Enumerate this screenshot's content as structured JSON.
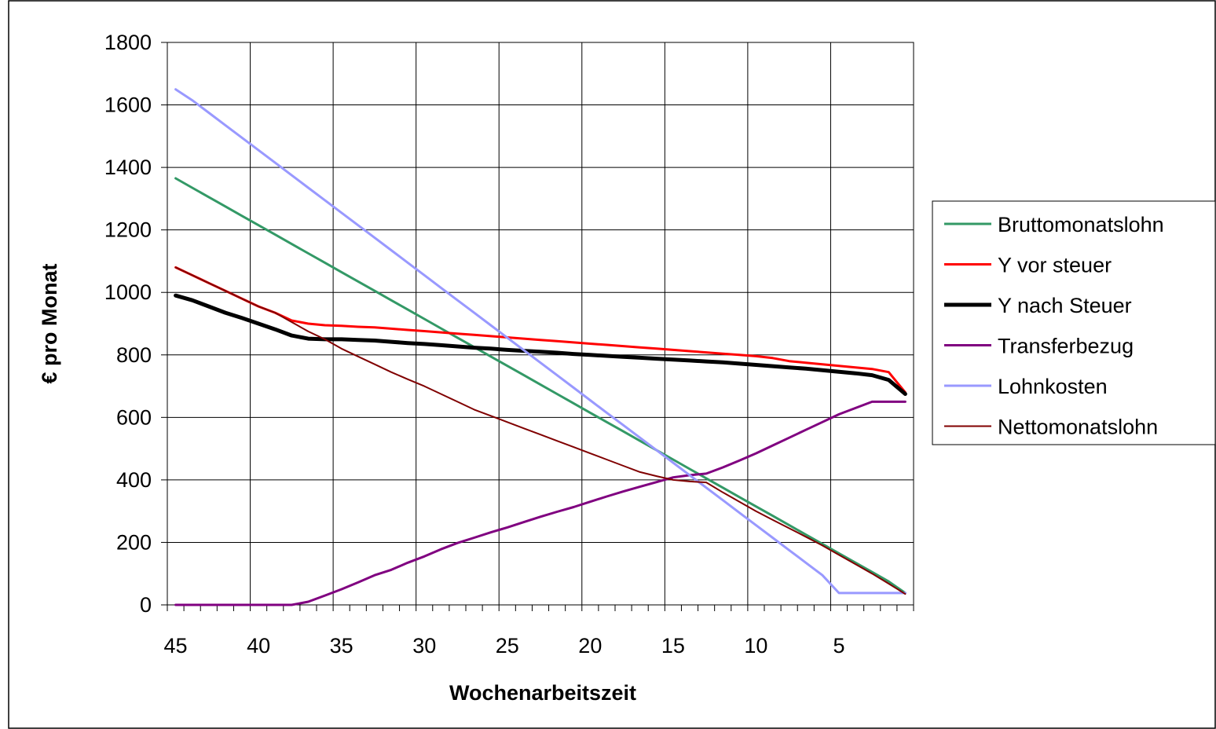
{
  "chart_data": {
    "type": "line",
    "title": "",
    "xlabel": "Wochenarbeitszeit",
    "ylabel": "€ pro Monat",
    "xlim": [
      45.5,
      0.5
    ],
    "ylim": [
      0,
      1800
    ],
    "x_ticks": [
      45,
      40,
      35,
      30,
      25,
      20,
      15,
      10,
      5
    ],
    "y_ticks": [
      0,
      200,
      400,
      600,
      800,
      1000,
      1200,
      1400,
      1600,
      1800
    ],
    "grid": true,
    "legend_position": "right",
    "x": [
      45,
      44,
      43,
      42,
      41,
      40,
      39,
      38,
      37,
      36,
      35,
      34,
      33,
      32,
      31,
      30,
      29,
      28,
      27,
      26,
      25,
      24,
      23,
      22,
      21,
      20,
      19,
      18,
      17,
      16,
      15,
      14,
      13,
      12,
      11,
      10,
      9,
      8,
      7,
      6,
      5,
      4,
      3,
      2,
      1
    ],
    "series": [
      {
        "name": "Bruttomonatslohn",
        "color": "#339966",
        "width": 3,
        "values": [
          1365,
          1335,
          1305,
          1275,
          1245,
          1215,
          1185,
          1155,
          1125,
          1095,
          1065,
          1035,
          1005,
          975,
          945,
          915,
          885,
          855,
          825,
          795,
          765,
          735,
          705,
          675,
          645,
          615,
          585,
          555,
          525,
          495,
          465,
          435,
          405,
          375,
          345,
          315,
          285,
          255,
          225,
          195,
          165,
          135,
          105,
          75,
          38
        ]
      },
      {
        "name": "Y vor steuer",
        "color": "#ff0000",
        "width": 3,
        "values": [
          1080,
          1055,
          1030,
          1005,
          980,
          955,
          935,
          910,
          900,
          895,
          893,
          890,
          888,
          884,
          880,
          876,
          872,
          868,
          864,
          860,
          856,
          852,
          848,
          844,
          840,
          836,
          832,
          828,
          824,
          820,
          816,
          812,
          808,
          804,
          800,
          796,
          790,
          780,
          775,
          770,
          765,
          760,
          755,
          745,
          680
        ]
      },
      {
        "name": "Y nach Steuer",
        "color": "#000000",
        "width": 5,
        "values": [
          990,
          975,
          955,
          935,
          918,
          900,
          882,
          862,
          852,
          850,
          850,
          848,
          846,
          842,
          838,
          835,
          831,
          827,
          823,
          820,
          816,
          813,
          810,
          807,
          803,
          800,
          797,
          794,
          791,
          788,
          785,
          782,
          779,
          776,
          772,
          768,
          764,
          760,
          756,
          751,
          746,
          741,
          735,
          720,
          675
        ]
      },
      {
        "name": "Transferbezug",
        "color": "#800080",
        "width": 3,
        "values": [
          0,
          0,
          0,
          0,
          0,
          0,
          0,
          0,
          10,
          30,
          50,
          72,
          95,
          112,
          135,
          155,
          178,
          198,
          215,
          232,
          248,
          265,
          282,
          298,
          313,
          330,
          347,
          363,
          378,
          393,
          408,
          415,
          420,
          440,
          462,
          485,
          510,
          535,
          560,
          585,
          610,
          630,
          650,
          650,
          650
        ]
      },
      {
        "name": "Lohnkosten",
        "color": "#9999ff",
        "width": 3,
        "values": [
          1650,
          1615,
          1575,
          1535,
          1495,
          1455,
          1415,
          1375,
          1335,
          1295,
          1255,
          1215,
          1175,
          1135,
          1095,
          1055,
          1015,
          975,
          935,
          895,
          855,
          815,
          775,
          735,
          695,
          655,
          615,
          575,
          535,
          495,
          455,
          415,
          375,
          335,
          295,
          255,
          215,
          175,
          135,
          95,
          38,
          38,
          38,
          38,
          38
        ]
      },
      {
        "name": "Nettomonatslohn",
        "color": "#800000",
        "width": 2,
        "values": [
          1080,
          1055,
          1030,
          1005,
          980,
          955,
          935,
          905,
          875,
          850,
          820,
          795,
          770,
          745,
          722,
          700,
          675,
          650,
          625,
          605,
          585,
          565,
          545,
          525,
          505,
          485,
          465,
          445,
          425,
          412,
          400,
          395,
          392,
          360,
          330,
          300,
          272,
          245,
          218,
          190,
          160,
          130,
          100,
          68,
          35
        ]
      }
    ]
  }
}
